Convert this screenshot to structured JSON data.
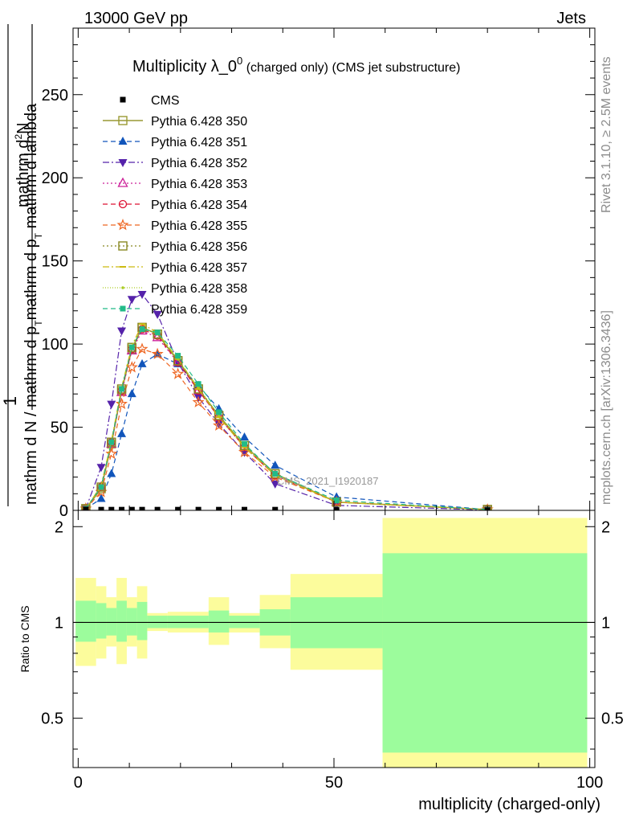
{
  "header": {
    "energy": "13000 GeV pp",
    "category": "Jets"
  },
  "side": {
    "rivet": "Rivet 3.1.10, ≥ 2.5M events",
    "mcplots": "mcplots.cern.ch [arXiv:1306.3436]"
  },
  "chart_data": [
    {
      "type": "line",
      "title_main": "Multiplicity λ_0",
      "title_sup": "0",
      "title_tail": " (charged only) (CMS jet substructure)",
      "ylabel_top": "1",
      "ylabel_num": "mathrm d",
      "ylabel_sup": "2",
      "ylabel_num_end": "N",
      "ylabel_den_a": "mathrm d N / mathrm d p",
      "ylabel_den_b": "mathrm d p",
      "ylabel_den_c": " mathrm d lambda",
      "ylabel_sub": "T",
      "xlim": [
        -1,
        101
      ],
      "ylim": [
        0,
        290
      ],
      "yticks": [
        0,
        50,
        100,
        150,
        200,
        250
      ],
      "watermark": "CMS_2021_I1920187",
      "legend_position": "top-left",
      "data": {
        "name": "CMS",
        "x": [
          1.5,
          4.5,
          6.5,
          8.5,
          10.5,
          12.5,
          15.5,
          19.5,
          23.5,
          27.5,
          32.5,
          38.5,
          50.5,
          80
        ],
        "y": [
          0.5,
          0.4,
          0.4,
          0.4,
          0.4,
          0.4,
          0.4,
          0.4,
          0.4,
          0.4,
          0.4,
          0.4,
          0.2,
          0.1
        ]
      },
      "series": [
        {
          "name": "Pythia 6.428 350",
          "color": "#999933",
          "marker": "square-open",
          "dash": "solid",
          "y": [
            1,
            13,
            40,
            72,
            97,
            110,
            106,
            90,
            73,
            57,
            39,
            22,
            5,
            0.5
          ]
        },
        {
          "name": "Pythia 6.428 351",
          "color": "#1155bb",
          "marker": "triangle-up",
          "dash": "6,4",
          "y": [
            1,
            7,
            22,
            46,
            70,
            88,
            94,
            88,
            75,
            61,
            44,
            27,
            8,
            0.5
          ]
        },
        {
          "name": "Pythia 6.428 352",
          "color": "#5522aa",
          "marker": "triangle-down",
          "dash": "8,3,2,3",
          "y": [
            1,
            26,
            64,
            108,
            127,
            130,
            118,
            89,
            68,
            52,
            35,
            16,
            3,
            0.3
          ]
        },
        {
          "name": "Pythia 6.428 353",
          "color": "#cc2299",
          "marker": "triangle-open",
          "dash": "2,3",
          "y": [
            1,
            14,
            40,
            71,
            96,
            108,
            104,
            89,
            72,
            56,
            38,
            21,
            5,
            0.5
          ]
        },
        {
          "name": "Pythia 6.428 354",
          "color": "#dd1133",
          "marker": "circle-open",
          "dash": "6,4",
          "y": [
            1,
            14,
            41,
            72,
            97,
            109,
            105,
            89,
            72,
            56,
            38,
            21,
            5,
            0.5
          ]
        },
        {
          "name": "Pythia 6.428 355",
          "color": "#ee6622",
          "marker": "star",
          "dash": "6,4",
          "y": [
            1,
            11,
            34,
            64,
            86,
            97,
            94,
            82,
            65,
            51,
            35,
            20,
            5,
            0.5
          ]
        },
        {
          "name": "Pythia 6.428 356",
          "color": "#888822",
          "marker": "square-open",
          "dash": "2,3",
          "y": [
            1,
            14,
            41,
            73,
            98,
            110,
            106,
            90,
            73,
            57,
            39,
            22,
            5,
            0.5
          ]
        },
        {
          "name": "Pythia 6.428 357",
          "color": "#ccbb11",
          "marker": "dash",
          "dash": "8,3,2,3",
          "y": [
            1,
            15,
            42,
            74,
            99,
            112,
            107,
            91,
            73,
            56,
            38,
            21,
            5,
            0.5
          ]
        },
        {
          "name": "Pythia 6.428 358",
          "color": "#aacc22",
          "marker": "dot",
          "dash": "1,2",
          "y": [
            1,
            14,
            41,
            73,
            98,
            110,
            106,
            91,
            74,
            57,
            39,
            22,
            5,
            0.5
          ]
        },
        {
          "name": "Pythia 6.428 359",
          "color": "#22bb88",
          "marker": "square",
          "dash": "6,4",
          "y": [
            1,
            14,
            41,
            73,
            98,
            109,
            107,
            93,
            76,
            59,
            40,
            22,
            6,
            0.5
          ]
        }
      ]
    },
    {
      "type": "area",
      "ylabel": "Ratio to CMS",
      "xlabel": "multiplicity (charged-only)",
      "xlim": [
        -1,
        101
      ],
      "ylim": [
        0.35,
        2.25
      ],
      "xticks": [
        0,
        50,
        100
      ],
      "yticks": [
        0.5,
        1,
        2
      ],
      "ytick_labels": [
        "0.5",
        "1",
        "2"
      ],
      "bins": [
        {
          "x0": -0.5,
          "x1": 3.5,
          "stat": [
            0.87,
            1.17
          ],
          "total": [
            0.73,
            1.38
          ]
        },
        {
          "x0": 3.5,
          "x1": 5.5,
          "stat": [
            0.89,
            1.15
          ],
          "total": [
            0.77,
            1.3
          ]
        },
        {
          "x0": 5.5,
          "x1": 7.5,
          "stat": [
            0.91,
            1.11
          ],
          "total": [
            0.84,
            1.2
          ]
        },
        {
          "x0": 7.5,
          "x1": 9.5,
          "stat": [
            0.87,
            1.17
          ],
          "total": [
            0.74,
            1.38
          ]
        },
        {
          "x0": 9.5,
          "x1": 11.5,
          "stat": [
            0.91,
            1.11
          ],
          "total": [
            0.84,
            1.2
          ]
        },
        {
          "x0": 11.5,
          "x1": 13.5,
          "stat": [
            0.88,
            1.16
          ],
          "total": [
            0.77,
            1.3
          ]
        },
        {
          "x0": 13.5,
          "x1": 17.5,
          "stat": [
            0.96,
            1.05
          ],
          "total": [
            0.94,
            1.07
          ]
        },
        {
          "x0": 17.5,
          "x1": 25.5,
          "stat": [
            0.96,
            1.05
          ],
          "total": [
            0.93,
            1.08
          ]
        },
        {
          "x0": 25.5,
          "x1": 29.5,
          "stat": [
            0.93,
            1.09
          ],
          "total": [
            0.85,
            1.2
          ]
        },
        {
          "x0": 29.5,
          "x1": 35.5,
          "stat": [
            0.96,
            1.05
          ],
          "total": [
            0.93,
            1.07
          ]
        },
        {
          "x0": 35.5,
          "x1": 41.5,
          "stat": [
            0.91,
            1.1
          ],
          "total": [
            0.83,
            1.22
          ]
        },
        {
          "x0": 41.5,
          "x1": 59.5,
          "stat": [
            0.83,
            1.2
          ],
          "total": [
            0.71,
            1.42
          ]
        },
        {
          "x0": 59.5,
          "x1": 99.5,
          "stat": [
            0.39,
            1.65
          ],
          "total": [
            0.35,
            2.13
          ]
        }
      ],
      "colors": {
        "stat": "#9cfc9c",
        "total": "#fcfc9c"
      }
    }
  ]
}
